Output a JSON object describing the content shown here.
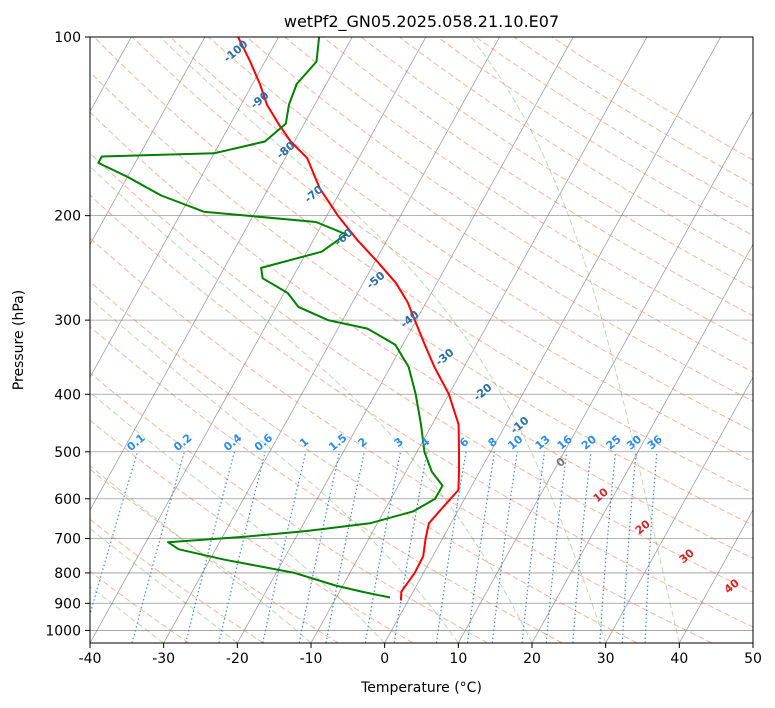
{
  "chart_data": {
    "type": "line",
    "title": "wetPf2_GN05.2025.058.21.10.E07",
    "xlabel": "Temperature (°C)",
    "ylabel": "Pressure (hPa)",
    "xlim": [
      -40,
      50
    ],
    "ylim": [
      1050,
      100
    ],
    "y_scale": "log",
    "grid": true,
    "x_ticks": [
      -40,
      -30,
      -20,
      -10,
      0,
      10,
      20,
      30,
      40,
      50
    ],
    "y_ticks": [
      100,
      200,
      300,
      400,
      500,
      600,
      700,
      800,
      900,
      1000
    ],
    "series": [
      {
        "role": "temperature",
        "color": "#ff0000",
        "points": [
          {
            "p": 890,
            "t": -1.0
          },
          {
            "p": 860,
            "t": -1.6
          },
          {
            "p": 800,
            "t": -1.2
          },
          {
            "p": 750,
            "t": -1.3
          },
          {
            "p": 700,
            "t": -2.3
          },
          {
            "p": 660,
            "t": -3.0
          },
          {
            "p": 620,
            "t": -2.3
          },
          {
            "p": 580,
            "t": -1.5
          },
          {
            "p": 540,
            "t": -2.8
          },
          {
            "p": 500,
            "t": -4.3
          },
          {
            "p": 450,
            "t": -6.4
          },
          {
            "p": 400,
            "t": -10.0
          },
          {
            "p": 360,
            "t": -14.0
          },
          {
            "p": 330,
            "t": -17.0
          },
          {
            "p": 300,
            "t": -20.2
          },
          {
            "p": 280,
            "t": -22.5
          },
          {
            "p": 260,
            "t": -25.5
          },
          {
            "p": 240,
            "t": -29.5
          },
          {
            "p": 220,
            "t": -34.0
          },
          {
            "p": 200,
            "t": -38.5
          },
          {
            "p": 180,
            "t": -43.0
          },
          {
            "p": 160,
            "t": -47.0
          },
          {
            "p": 150,
            "t": -50.5
          },
          {
            "p": 140,
            "t": -53.5
          },
          {
            "p": 130,
            "t": -56.5
          },
          {
            "p": 120,
            "t": -59.0
          },
          {
            "p": 110,
            "t": -62.0
          },
          {
            "p": 100,
            "t": -65.5
          }
        ]
      },
      {
        "role": "dewpoint",
        "color": "#008000",
        "points": [
          {
            "p": 880,
            "t": -2.7
          },
          {
            "p": 860,
            "t": -7.0
          },
          {
            "p": 840,
            "t": -11.0
          },
          {
            "p": 800,
            "t": -17.5
          },
          {
            "p": 760,
            "t": -28.0
          },
          {
            "p": 730,
            "t": -35.0
          },
          {
            "p": 710,
            "t": -37.0
          },
          {
            "p": 695,
            "t": -27.0
          },
          {
            "p": 680,
            "t": -19.0
          },
          {
            "p": 660,
            "t": -11.0
          },
          {
            "p": 630,
            "t": -6.0
          },
          {
            "p": 600,
            "t": -4.0
          },
          {
            "p": 570,
            "t": -4.0
          },
          {
            "p": 540,
            "t": -6.5
          },
          {
            "p": 500,
            "t": -9.0
          },
          {
            "p": 450,
            "t": -11.5
          },
          {
            "p": 400,
            "t": -14.5
          },
          {
            "p": 360,
            "t": -17.5
          },
          {
            "p": 330,
            "t": -21.0
          },
          {
            "p": 310,
            "t": -26.0
          },
          {
            "p": 300,
            "t": -32.0
          },
          {
            "p": 285,
            "t": -37.0
          },
          {
            "p": 270,
            "t": -39.5
          },
          {
            "p": 255,
            "t": -44.0
          },
          {
            "p": 245,
            "t": -45.0
          },
          {
            "p": 230,
            "t": -38.0
          },
          {
            "p": 215,
            "t": -36.0
          },
          {
            "p": 205,
            "t": -41.0
          },
          {
            "p": 197,
            "t": -57.0
          },
          {
            "p": 185,
            "t": -64.0
          },
          {
            "p": 172,
            "t": -70.0
          },
          {
            "p": 163,
            "t": -75.0
          },
          {
            "p": 159,
            "t": -75.0
          },
          {
            "p": 157,
            "t": -60.0
          },
          {
            "p": 150,
            "t": -54.0
          },
          {
            "p": 140,
            "t": -52.5
          },
          {
            "p": 130,
            "t": -53.5
          },
          {
            "p": 120,
            "t": -54.0
          },
          {
            "p": 110,
            "t": -53.0
          },
          {
            "p": 100,
            "t": -54.5
          }
        ]
      }
    ],
    "dry_adiabat_labels": [
      "-100",
      "-90",
      "-80",
      "-70",
      "-60",
      "-50",
      "-40",
      "-30",
      "-20",
      "-10"
    ],
    "mixing_ratio_labels": [
      "0.1",
      "0.2",
      "0.4",
      "0.6",
      "1",
      "1.5",
      "2",
      "3",
      "4",
      "6",
      "8",
      "10",
      "13",
      "16",
      "20",
      "25",
      "30",
      "36"
    ],
    "wet_bulb_labels": [
      "0",
      "10",
      "20",
      "30",
      "40"
    ],
    "colors": {
      "isotherm": "#555555",
      "isobar": "#555555",
      "dry_adiabat": "#f07850",
      "moist_adiabat": "#2ca02c",
      "mixing_ratio": "#1f77d4",
      "dry_label": "#2a6fa8",
      "mixing_label": "#2a8cf0",
      "wet_label": "#d62728",
      "wet_label_zero": "#777777",
      "curve_left": "#c9b493"
    }
  }
}
